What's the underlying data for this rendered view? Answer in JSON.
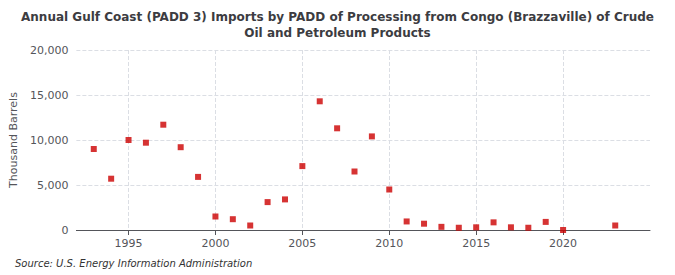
{
  "chart_data": {
    "type": "scatter",
    "title": "Annual Gulf Coast (PADD 3) Imports by PADD of Processing from Congo (Brazzaville) of Crude\nOil and Petroleum Products",
    "ylabel": "Thousand Barrels",
    "annotation": "Source: U.S. Energy Information Administration",
    "x": [
      1993,
      1994,
      1995,
      1996,
      1997,
      1998,
      1999,
      2000,
      2001,
      2002,
      2003,
      2004,
      2005,
      2006,
      2007,
      2008,
      2009,
      2010,
      2011,
      2012,
      2013,
      2014,
      2015,
      2016,
      2017,
      2018,
      2019,
      2020,
      2023
    ],
    "values": [
      9000,
      5700,
      10000,
      9700,
      11700,
      9200,
      5900,
      1500,
      1200,
      500,
      3100,
      3400,
      7100,
      14300,
      11300,
      6500,
      10400,
      4500,
      950,
      700,
      350,
      250,
      300,
      850,
      300,
      250,
      900,
      0,
      500
    ],
    "color": "#cc0000",
    "marker": "square",
    "xlim": [
      1992,
      2025
    ],
    "ylim": [
      0,
      20000
    ],
    "xticks": [
      1995,
      2000,
      2005,
      2010,
      2015,
      2020
    ],
    "yticks": [
      0,
      {
        "value": 5000,
        "label": "5,000"
      },
      {
        "value": 10000,
        "label": "10,000"
      },
      {
        "value": 15000,
        "label": "15,000"
      },
      {
        "value": 20000,
        "label": "20,000"
      }
    ],
    "grid": true
  }
}
